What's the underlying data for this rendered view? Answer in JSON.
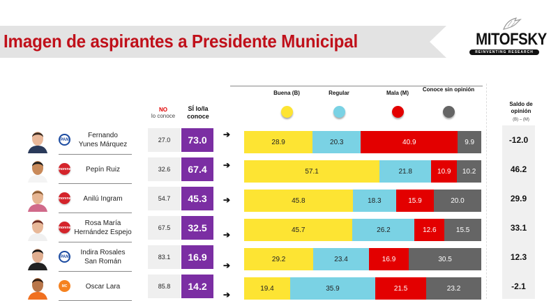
{
  "header": {
    "title": "Imagen de aspirantes a Presidente Municipal",
    "logo_name": "MITOFSKY",
    "logo_tagline": "REINVENTING RESEARCH"
  },
  "columns": {
    "no_label": "NO",
    "no_sub": "lo conoce",
    "si_label": "SÍ lo/la conoce",
    "saldo_label": "Saldo de opinión",
    "saldo_sub": "(B) – (M)"
  },
  "colors": {
    "title": "#c0101a",
    "si_box": "#7b2ea3",
    "buena": "#fde433",
    "regular": "#7ad2e4",
    "mala": "#e30000",
    "sin_opinion": "#656565"
  },
  "chart_data": {
    "type": "bar",
    "stacked": true,
    "orientation": "horizontal",
    "title": "Imagen de aspirantes a Presidente Municipal",
    "legend": [
      {
        "key": "buena",
        "label": "Buena (B)",
        "color": "#fde433"
      },
      {
        "key": "regular",
        "label": "Regular",
        "color": "#7ad2e4"
      },
      {
        "key": "mala",
        "label": "Mala (M)",
        "color": "#e30000"
      },
      {
        "key": "sin",
        "label": "Conoce sin opinión",
        "color": "#656565"
      }
    ],
    "legend_position": "top",
    "categories": [
      "Fernando Yunes Márquez",
      "Pepín Ruiz",
      "Anilú Ingram",
      "Rosa María Hernández Espejo",
      "Indira Rosales San Román",
      "Oscar Lara"
    ],
    "series": [
      {
        "name": "Buena (B)",
        "values": [
          28.9,
          57.1,
          45.8,
          45.7,
          29.2,
          19.4
        ]
      },
      {
        "name": "Regular",
        "values": [
          20.3,
          21.8,
          18.3,
          26.2,
          23.4,
          35.9
        ]
      },
      {
        "name": "Mala (M)",
        "values": [
          40.9,
          10.9,
          15.9,
          12.6,
          16.9,
          21.5
        ]
      },
      {
        "name": "Conoce sin opinión",
        "values": [
          9.9,
          10.2,
          20.0,
          15.5,
          30.5,
          23.2
        ]
      }
    ],
    "xlim": [
      0,
      100
    ]
  },
  "candidates": [
    {
      "name": "Fernando\nYunes Márquez",
      "party": "PAN",
      "party_class": "pan",
      "no_conoce": "27.0",
      "si_conoce": "73.0",
      "buena": 28.9,
      "regular": 20.3,
      "mala": 40.9,
      "sin": 9.9,
      "saldo": "-12.0"
    },
    {
      "name": "Pepín Ruiz",
      "party": "morena",
      "party_class": "morena",
      "no_conoce": "32.6",
      "si_conoce": "67.4",
      "buena": 57.1,
      "regular": 21.8,
      "mala": 10.9,
      "sin": 10.2,
      "saldo": "46.2"
    },
    {
      "name": "Anilú Ingram",
      "party": "morena",
      "party_class": "morena",
      "no_conoce": "54.7",
      "si_conoce": "45.3",
      "buena": 45.8,
      "regular": 18.3,
      "mala": 15.9,
      "sin": 20.0,
      "saldo": "29.9"
    },
    {
      "name": "Rosa María\nHernández Espejo",
      "party": "morena",
      "party_class": "morena",
      "no_conoce": "67.5",
      "si_conoce": "32.5",
      "buena": 45.7,
      "regular": 26.2,
      "mala": 12.6,
      "sin": 15.5,
      "saldo": "33.1"
    },
    {
      "name": "Indira Rosales\nSan Román",
      "party": "PAN",
      "party_class": "pan",
      "no_conoce": "83.1",
      "si_conoce": "16.9",
      "buena": 29.2,
      "regular": 23.4,
      "mala": 16.9,
      "sin": 30.5,
      "saldo": "12.3"
    },
    {
      "name": "Oscar Lara",
      "party": "MC",
      "party_class": "mc",
      "no_conoce": "85.8",
      "si_conoce": "14.2",
      "buena": 19.4,
      "regular": 35.9,
      "mala": 21.5,
      "sin": 23.2,
      "saldo": "-2.1"
    }
  ]
}
